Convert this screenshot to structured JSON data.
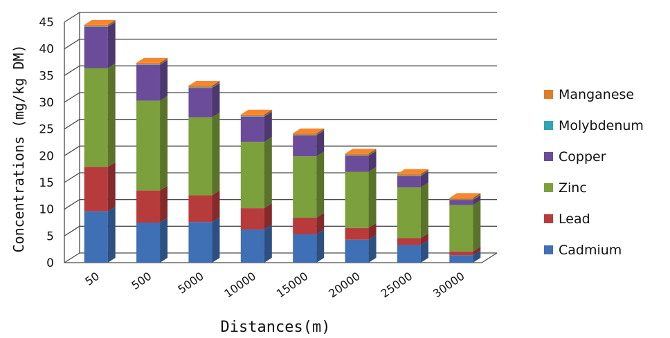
{
  "chart_data": {
    "type": "bar",
    "stacked": true,
    "three_d": true,
    "xlabel": "Distances(m)",
    "ylabel": "Concentrations (mg/kg DM)",
    "ylim": [
      0,
      45
    ],
    "yticks": [
      0,
      5,
      10,
      15,
      20,
      25,
      30,
      35,
      40,
      45
    ],
    "grid": true,
    "legend_position": "right",
    "categories": [
      "50",
      "500",
      "5000",
      "10000",
      "15000",
      "20000",
      "25000",
      "30000"
    ],
    "series": [
      {
        "name": "Cadmium",
        "color": "#3F6FB5",
        "values": [
          9.6,
          7.5,
          7.6,
          6.2,
          5.3,
          4.3,
          3.3,
          1.4
        ]
      },
      {
        "name": "Lead",
        "color": "#B83B3B",
        "values": [
          8.3,
          6.0,
          5.0,
          4.0,
          3.1,
          2.2,
          1.3,
          0.7
        ]
      },
      {
        "name": "Zinc",
        "color": "#7CA03B",
        "values": [
          18.5,
          16.8,
          14.6,
          12.4,
          11.5,
          10.5,
          9.5,
          8.7
        ]
      },
      {
        "name": "Copper",
        "color": "#6B4C9A",
        "values": [
          7.7,
          6.7,
          5.5,
          4.7,
          3.9,
          3.0,
          2.1,
          0.9
        ]
      },
      {
        "name": "Molybdenum",
        "color": "#2FA3B8",
        "values": [
          0.1,
          0.1,
          0.1,
          0.1,
          0.1,
          0.1,
          0.1,
          0.1
        ]
      },
      {
        "name": "Manganese",
        "color": "#E07B2A",
        "values": [
          0.3,
          0.3,
          0.3,
          0.3,
          0.3,
          0.3,
          0.3,
          0.3
        ]
      }
    ]
  }
}
